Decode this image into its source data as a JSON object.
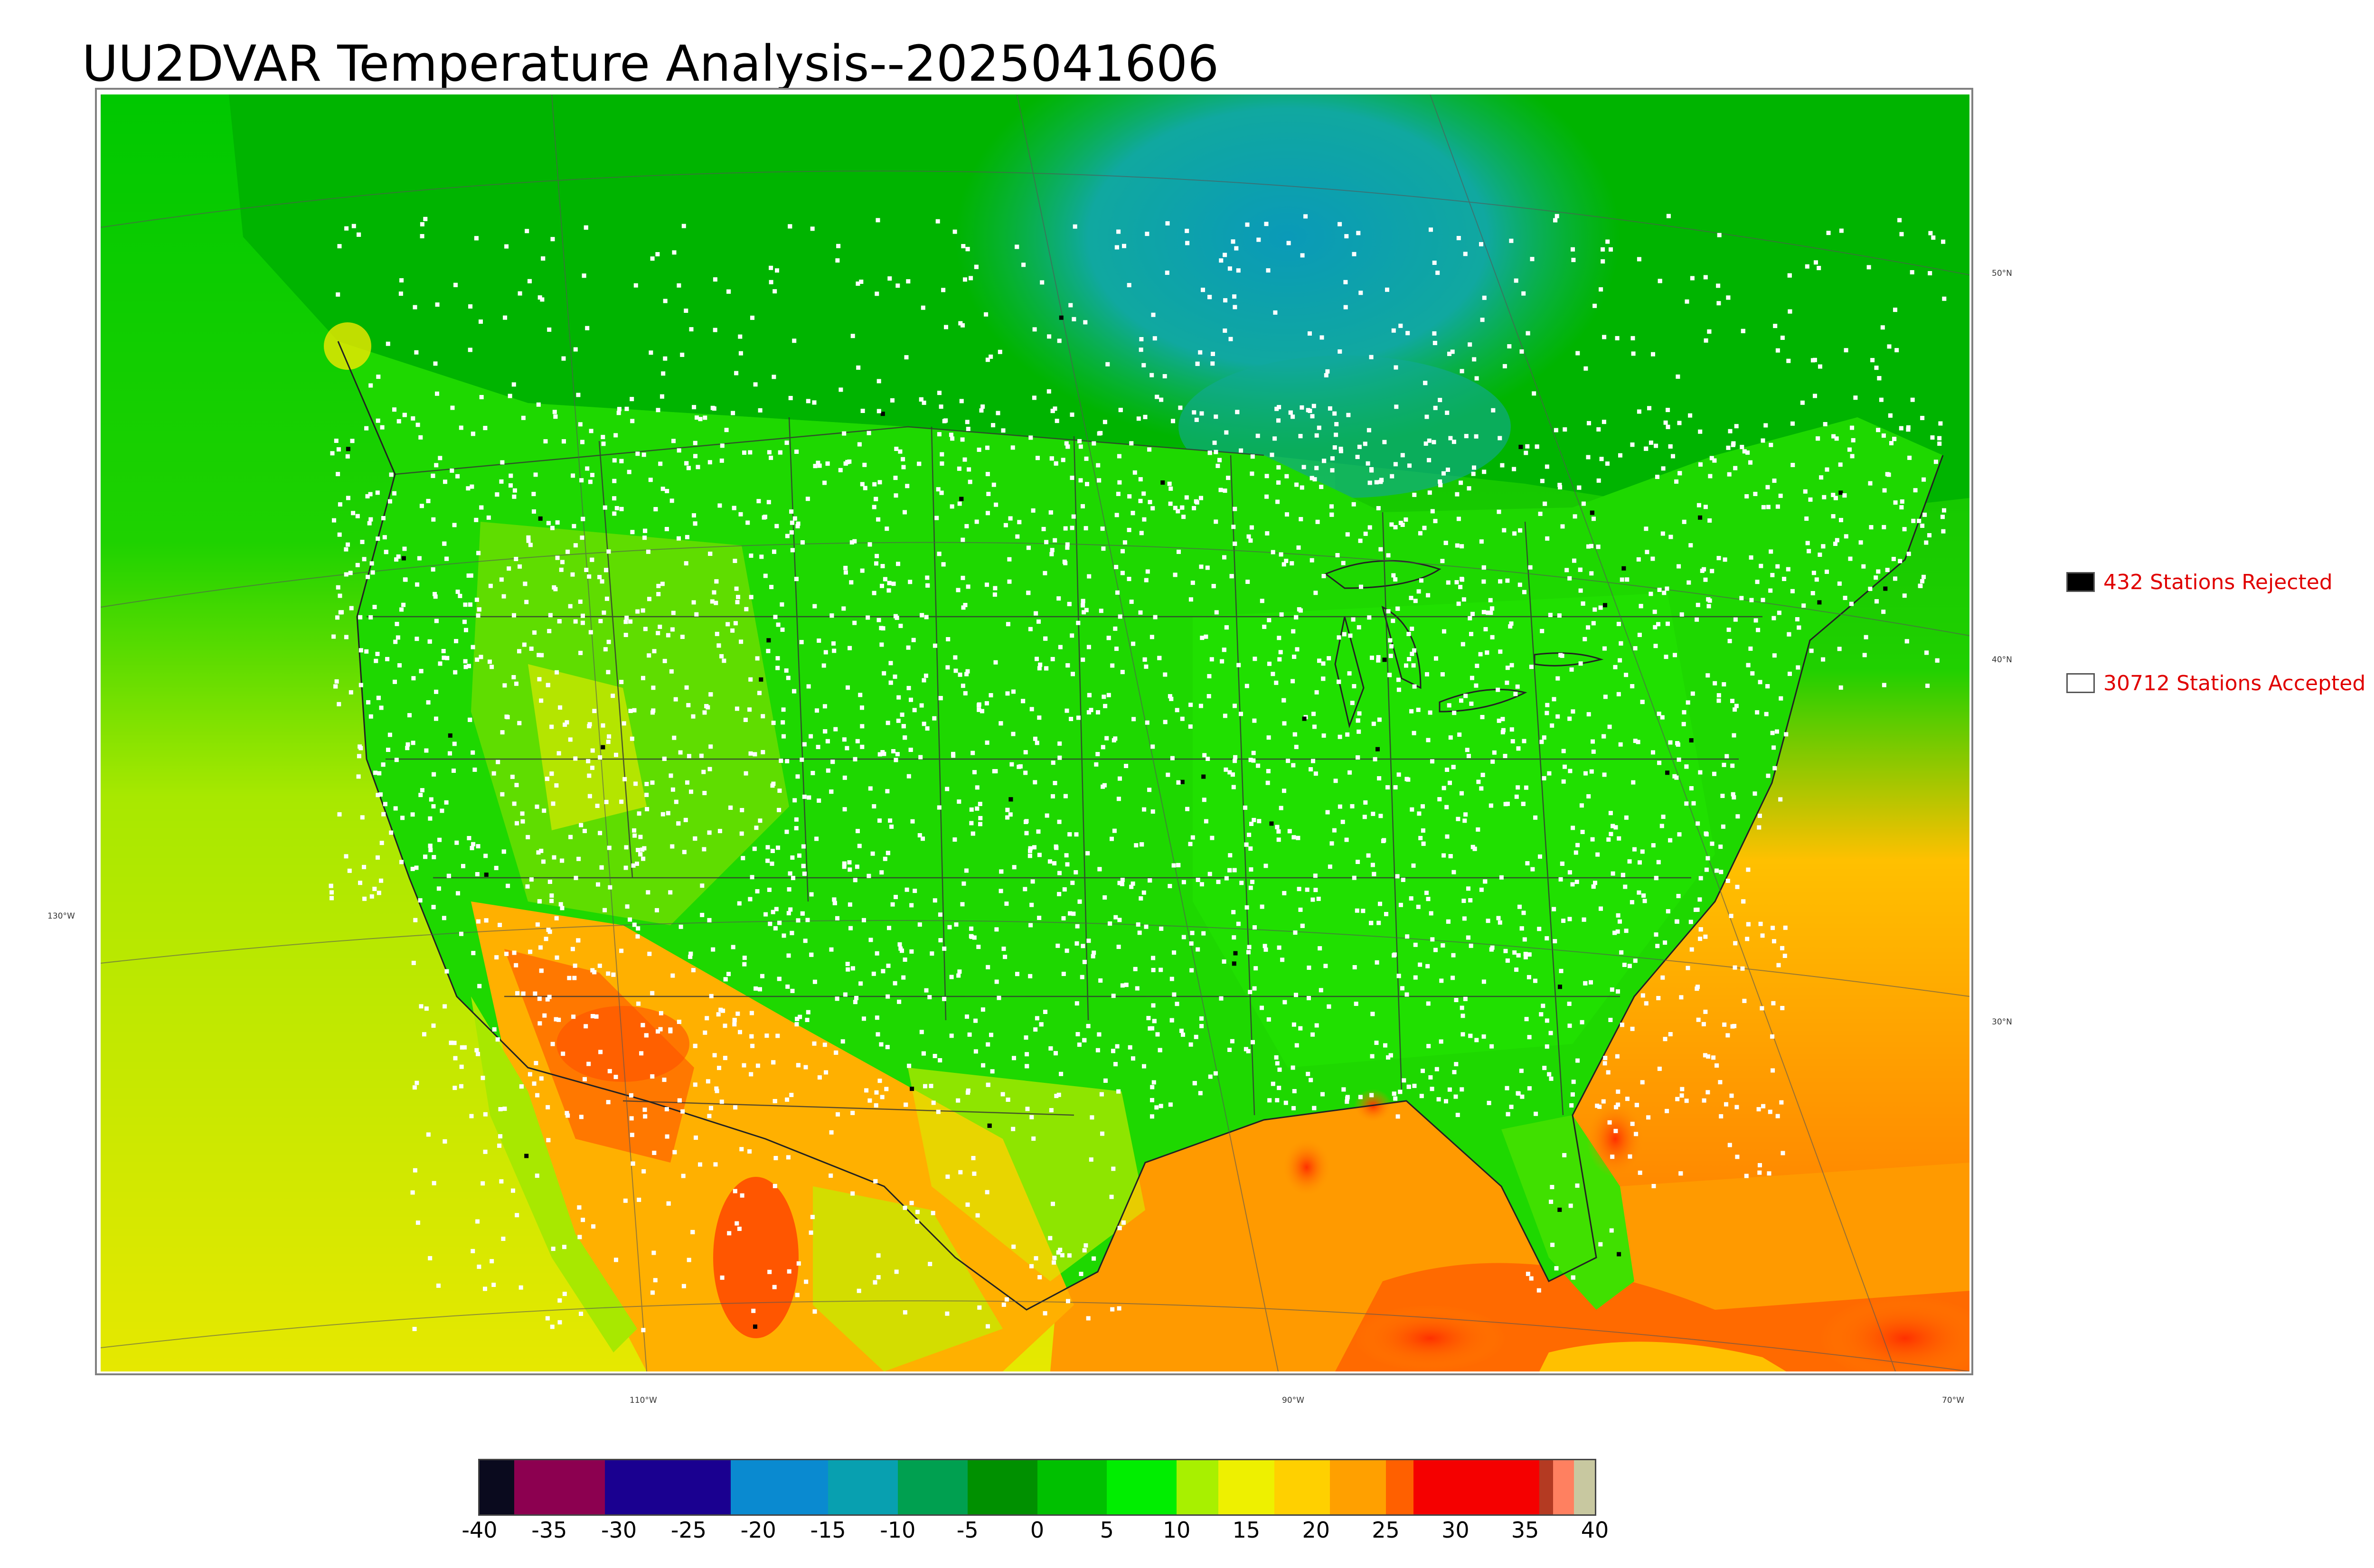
{
  "title": "UU2DVAR Temperature Analysis--2025041606",
  "legend": {
    "rejected": {
      "label": "432 Stations Rejected",
      "swatch_color": "#000000"
    },
    "accepted": {
      "label": "30712 Stations Accepted",
      "swatch_color": "#ffffff"
    },
    "text_color": "#e00000"
  },
  "map": {
    "lat_labels": [
      "50°N",
      "40°N",
      "30°N"
    ],
    "lon_labels": [
      "130°W",
      "110°W",
      "90°W",
      "70°W"
    ],
    "ocean_pacific_color": "#cfe800",
    "ocean_atlantic_color": "#ffa500",
    "gulf_color": "#ff8a00",
    "land_primary_color": "#22dd00",
    "canada_north_color": "#00b000",
    "hudson_cold_color": "#0fa0a0"
  },
  "colorbar": {
    "tick_labels": [
      "-40",
      "-35",
      "-30",
      "-25",
      "-20",
      "-15",
      "-10",
      "-5",
      "0",
      "5",
      "10",
      "15",
      "20",
      "25",
      "30",
      "35",
      "40"
    ],
    "range": [
      -40,
      40
    ],
    "colors": [
      {
        "from": -40,
        "to": -37.5,
        "color": "#0a0a1e"
      },
      {
        "from": -37.5,
        "to": -31,
        "color": "#8c0050"
      },
      {
        "from": -31,
        "to": -22,
        "color": "#1a0090"
      },
      {
        "from": -22,
        "to": -15,
        "color": "#0a8ad0"
      },
      {
        "from": -15,
        "to": -10,
        "color": "#08a0b0"
      },
      {
        "from": -10,
        "to": -5,
        "color": "#00a050"
      },
      {
        "from": -5,
        "to": 0,
        "color": "#009000"
      },
      {
        "from": 0,
        "to": 5,
        "color": "#00c000"
      },
      {
        "from": 5,
        "to": 10,
        "color": "#00ee00"
      },
      {
        "from": 10,
        "to": 13,
        "color": "#a8f000"
      },
      {
        "from": 13,
        "to": 17,
        "color": "#eef000"
      },
      {
        "from": 17,
        "to": 21,
        "color": "#ffd000"
      },
      {
        "from": 21,
        "to": 25,
        "color": "#ffa000"
      },
      {
        "from": 25,
        "to": 27,
        "color": "#ff6000"
      },
      {
        "from": 27,
        "to": 36,
        "color": "#f50000"
      },
      {
        "from": 36,
        "to": 37,
        "color": "#b43a22"
      },
      {
        "from": 37,
        "to": 38.5,
        "color": "#ff8060"
      },
      {
        "from": 38.5,
        "to": 40,
        "color": "#c8c8a0"
      }
    ]
  }
}
